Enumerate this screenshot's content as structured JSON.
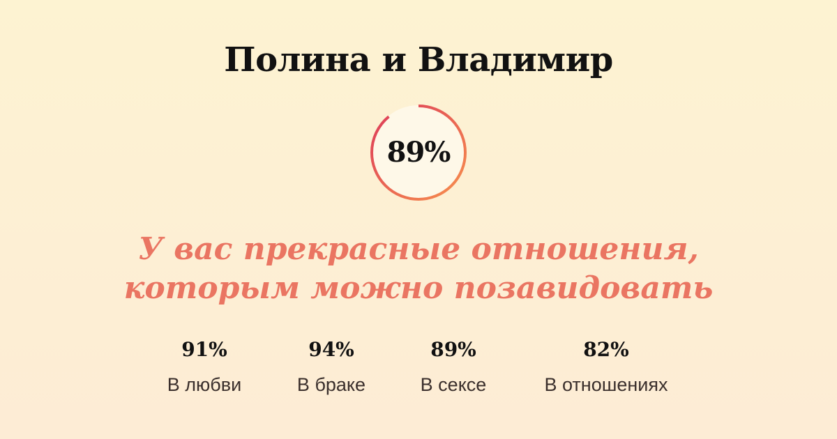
{
  "title": "Полина и Владимир",
  "overall": {
    "label": "89%",
    "value": 89,
    "ring_colors": [
      "#e0405a",
      "#f5884f"
    ]
  },
  "verdict": {
    "line1": "У вас прекрасные отношения,",
    "line2": "которым можно позавидовать"
  },
  "stats": [
    {
      "value": "91%",
      "label": "В любви"
    },
    {
      "value": "94%",
      "label": "В браке"
    },
    {
      "value": "89%",
      "label": "В сексе"
    },
    {
      "value": "82%",
      "label": "В отношениях"
    }
  ]
}
